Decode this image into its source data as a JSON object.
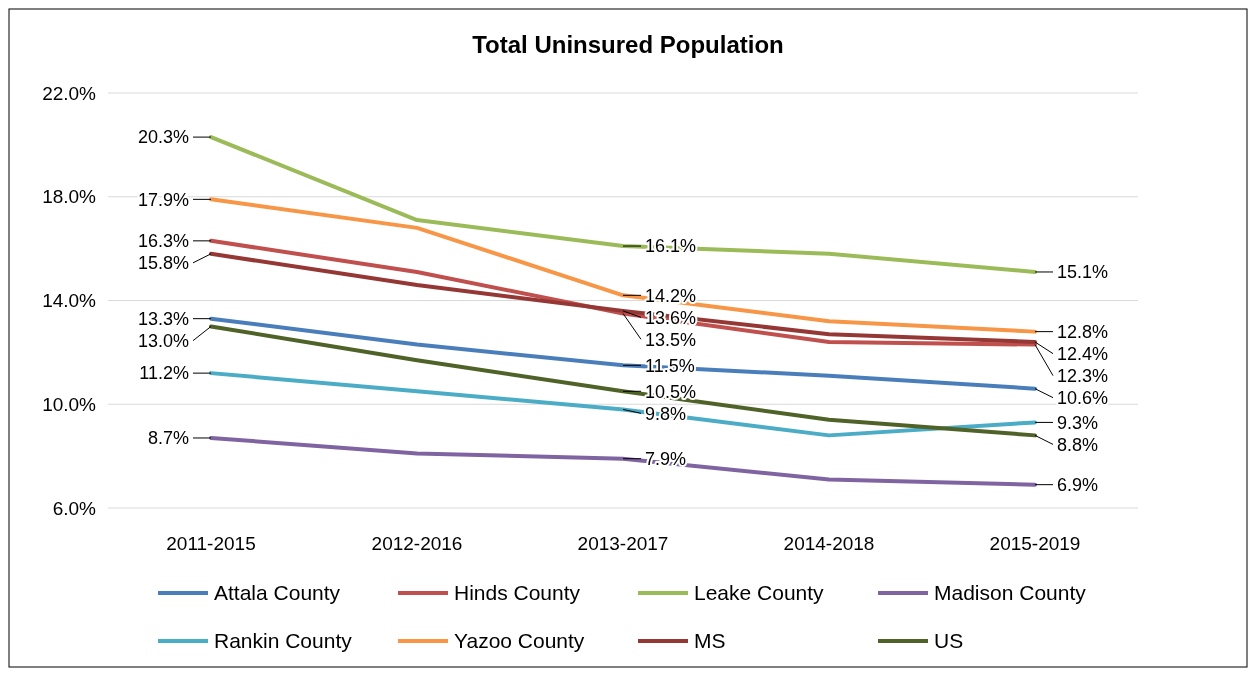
{
  "chart_data": {
    "type": "line",
    "title": "Total Uninsured Population",
    "categories": [
      "2011-2015",
      "2012-2016",
      "2013-2017",
      "2014-2018",
      "2015-2019"
    ],
    "ylim": [
      6,
      22
    ],
    "yticks": [
      {
        "value": 6,
        "label": "6.0%"
      },
      {
        "value": 10,
        "label": "10.0%"
      },
      {
        "value": 14,
        "label": "14.0%"
      },
      {
        "value": 18,
        "label": "18.0%"
      },
      {
        "value": 22,
        "label": "22.0%"
      }
    ],
    "grid": "y",
    "legend": "bottom",
    "marker": "none",
    "line_style": "solid",
    "series": [
      {
        "name": "Attala County",
        "color": "#4a7ebb",
        "values": [
          13.3,
          12.3,
          11.5,
          11.1,
          10.6
        ],
        "value_labels": [
          "13.3%",
          null,
          "11.5%",
          null,
          "10.6%"
        ]
      },
      {
        "name": "Hinds County",
        "color": "#c0504d",
        "values": [
          16.3,
          15.1,
          13.5,
          12.4,
          12.3
        ],
        "value_labels": [
          "16.3%",
          null,
          "13.5%",
          null,
          "12.3%"
        ]
      },
      {
        "name": "Leake County",
        "color": "#9bbb59",
        "values": [
          20.3,
          17.1,
          16.1,
          15.8,
          15.1
        ],
        "value_labels": [
          "20.3%",
          null,
          "16.1%",
          null,
          "15.1%"
        ]
      },
      {
        "name": "Madison County",
        "color": "#8064a2",
        "values": [
          8.7,
          8.1,
          7.9,
          7.1,
          6.9
        ],
        "value_labels": [
          "8.7%",
          null,
          "7.9%",
          null,
          "6.9%"
        ]
      },
      {
        "name": "Rankin County",
        "color": "#4bacc6",
        "values": [
          11.2,
          10.5,
          9.8,
          8.8,
          9.3
        ],
        "value_labels": [
          "11.2%",
          null,
          "9.8%",
          null,
          "9.3%"
        ]
      },
      {
        "name": "Yazoo County",
        "color": "#f79646",
        "values": [
          17.9,
          16.8,
          14.2,
          13.2,
          12.8
        ],
        "value_labels": [
          "17.9%",
          null,
          "14.2%",
          null,
          "12.8%"
        ]
      },
      {
        "name": "MS",
        "color": "#953735",
        "values": [
          15.8,
          14.6,
          13.6,
          12.7,
          12.4
        ],
        "value_labels": [
          "15.8%",
          null,
          "13.6%",
          null,
          "12.4%"
        ]
      },
      {
        "name": "US",
        "color": "#4f6228",
        "values": [
          13.0,
          11.7,
          10.5,
          9.4,
          8.8
        ],
        "value_labels": [
          "13.0%",
          null,
          "10.5%",
          null,
          "8.8%"
        ]
      }
    ]
  }
}
